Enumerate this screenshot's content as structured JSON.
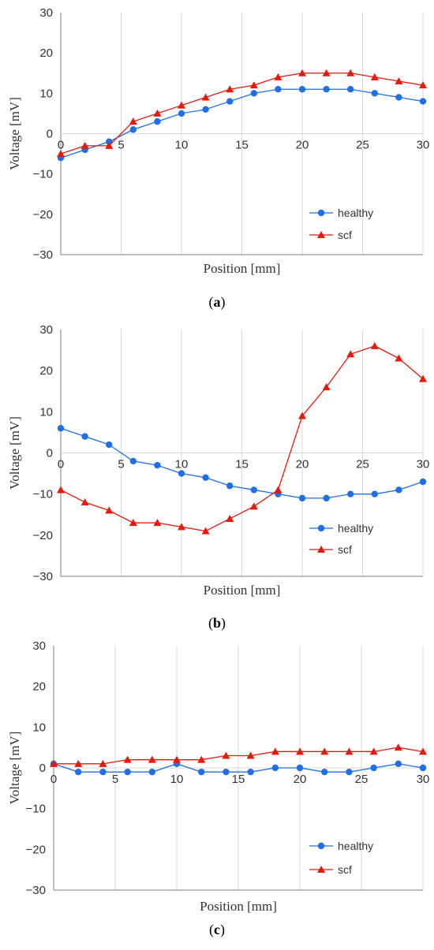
{
  "colors": {
    "healthy": "#1f6fe8",
    "scf": "#e8180c",
    "grid": "#d9d9d9",
    "axis": "#7f7f7f"
  },
  "chart_data": [
    {
      "type": "line",
      "caption_letter": "a",
      "xlabel": "Position [mm]",
      "ylabel": "Voltage [mV]",
      "xlim": [
        0,
        30
      ],
      "ylim": [
        -30,
        30
      ],
      "x_ticks": [
        0,
        5,
        10,
        15,
        20,
        25,
        30
      ],
      "y_ticks": [
        -30,
        -20,
        -10,
        0,
        10,
        20,
        30
      ],
      "y_tick_labels": [
        "−30",
        "−20",
        "−10",
        "0",
        "10",
        "20",
        "30"
      ],
      "grid": true,
      "legend_position": "bottom-right",
      "x": [
        0,
        2,
        4,
        6,
        8,
        10,
        12,
        14,
        16,
        18,
        20,
        22,
        24,
        26,
        28,
        30
      ],
      "series": [
        {
          "name": "healthy",
          "marker": "circle",
          "values": [
            -6,
            -4,
            -2,
            1,
            3,
            5,
            6,
            8,
            10,
            11,
            11,
            11,
            11,
            10,
            9,
            8
          ]
        },
        {
          "name": "scf",
          "marker": "triangle",
          "values": [
            -5,
            -3,
            -3,
            3,
            5,
            7,
            9,
            11,
            12,
            14,
            15,
            15,
            15,
            14,
            13,
            12
          ]
        }
      ]
    },
    {
      "type": "line",
      "caption_letter": "b",
      "xlabel": "Position [mm]",
      "ylabel": "Voltage [mV]",
      "xlim": [
        0,
        30
      ],
      "ylim": [
        -30,
        30
      ],
      "x_ticks": [
        0,
        5,
        10,
        15,
        20,
        25,
        30
      ],
      "y_ticks": [
        -30,
        -20,
        -10,
        0,
        10,
        20,
        30
      ],
      "y_tick_labels": [
        "−30",
        "−20",
        "−10",
        "0",
        "10",
        "20",
        "30"
      ],
      "grid": true,
      "legend_position": "bottom-right",
      "x": [
        0,
        2,
        4,
        6,
        8,
        10,
        12,
        14,
        16,
        18,
        20,
        22,
        24,
        26,
        28,
        30
      ],
      "series": [
        {
          "name": "healthy",
          "marker": "circle",
          "values": [
            6,
            4,
            2,
            -2,
            -3,
            -5,
            -6,
            -8,
            -9,
            -10,
            -11,
            -11,
            -10,
            -10,
            -9,
            -7
          ]
        },
        {
          "name": "scf",
          "marker": "triangle",
          "values": [
            -9,
            -12,
            -14,
            -17,
            -17,
            -18,
            -19,
            -16,
            -13,
            -9,
            9,
            16,
            24,
            26,
            23,
            18
          ]
        }
      ]
    },
    {
      "type": "line",
      "caption_letter": "c",
      "xlabel": "Position [mm]",
      "ylabel": "Voltage [mV]",
      "xlim": [
        0,
        30
      ],
      "ylim": [
        -30,
        30
      ],
      "x_ticks": [
        0,
        5,
        10,
        15,
        20,
        25,
        30
      ],
      "y_ticks": [
        -30,
        -20,
        -10,
        0,
        10,
        20,
        30
      ],
      "y_tick_labels": [
        "−30",
        "−20",
        "−10",
        "0",
        "10",
        "20",
        "30"
      ],
      "grid": true,
      "legend_position": "bottom-right",
      "x": [
        0,
        2,
        4,
        6,
        8,
        10,
        12,
        14,
        16,
        18,
        20,
        22,
        24,
        26,
        28,
        30
      ],
      "series": [
        {
          "name": "healthy",
          "marker": "circle",
          "values": [
            1,
            -1,
            -1,
            -1,
            -1,
            1,
            -1,
            -1,
            -1,
            0,
            0,
            -1,
            -1,
            0,
            1,
            0
          ]
        },
        {
          "name": "scf",
          "marker": "triangle",
          "values": [
            1,
            1,
            1,
            2,
            2,
            2,
            2,
            3,
            3,
            4,
            4,
            4,
            4,
            4,
            5,
            4
          ]
        }
      ]
    }
  ]
}
